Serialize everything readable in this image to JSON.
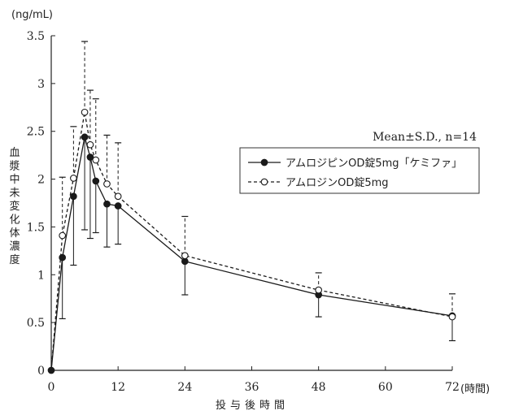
{
  "chart_data": {
    "type": "line",
    "unit_label": "(ng/mL)",
    "ylabel": "血漿中未変化体濃度",
    "xlabel": "投与後時間",
    "x_unit_label": "(時間)",
    "xlim": [
      0,
      72
    ],
    "ylim": [
      0,
      3.5
    ],
    "x_ticks": [
      0,
      12,
      24,
      36,
      48,
      60,
      72
    ],
    "y_ticks": [
      0,
      0.5,
      1,
      1.5,
      2,
      2.5,
      3,
      3.5
    ],
    "grid": false,
    "legend_position": "right, inside plot",
    "annotation": "Mean±S.D., n=14",
    "series": [
      {
        "name": "アムロジピンOD錠5mg「ケミファ」",
        "marker": "filled-circle",
        "line_style": "solid",
        "color": "#1a1a1a",
        "x": [
          0,
          2,
          4,
          6,
          7,
          8,
          10,
          12,
          24,
          48,
          72
        ],
        "y": [
          0,
          1.18,
          1.82,
          2.44,
          2.23,
          1.98,
          1.74,
          1.72,
          1.14,
          0.79,
          0.57
        ],
        "sd": [
          0,
          0.64,
          0.72,
          0.97,
          0.85,
          0.54,
          0.45,
          0.4,
          0.35,
          0.23,
          0.26
        ]
      },
      {
        "name": "アムロジンOD錠5mg",
        "marker": "open-circle",
        "line_style": "dashed",
        "color": "#1a1a1a",
        "x": [
          0,
          2,
          4,
          6,
          7,
          8,
          10,
          12,
          24,
          48,
          72
        ],
        "y": [
          0,
          1.41,
          2.01,
          2.7,
          2.36,
          2.2,
          1.95,
          1.82,
          1.2,
          0.84,
          0.56
        ],
        "sd": [
          0,
          0.61,
          0.54,
          0.74,
          0.57,
          0.64,
          0.51,
          0.56,
          0.41,
          0.18,
          0.24
        ]
      }
    ]
  }
}
